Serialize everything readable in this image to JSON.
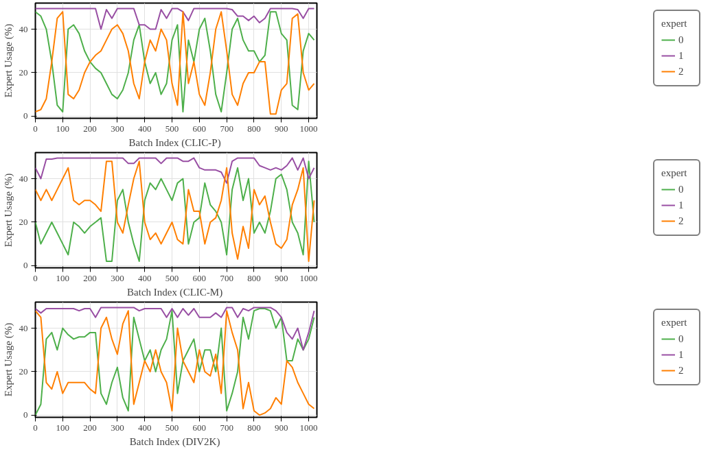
{
  "chart_data": [
    {
      "type": "line",
      "xlabel": "Batch Index  (CLIC-P)",
      "ylabel": "Expert Usage (%)",
      "legend_title": "expert",
      "legend": "right",
      "grid": true,
      "x": [
        0,
        20,
        40,
        60,
        80,
        100,
        120,
        140,
        160,
        180,
        200,
        220,
        240,
        260,
        280,
        300,
        320,
        340,
        360,
        380,
        400,
        420,
        440,
        460,
        480,
        500,
        520,
        540,
        560,
        580,
        600,
        620,
        640,
        660,
        680,
        700,
        720,
        740,
        760,
        780,
        800,
        820,
        840,
        860,
        880,
        900,
        920,
        940,
        960,
        980,
        1000,
        1020
      ],
      "xlim": [
        0,
        1030
      ],
      "ylim": [
        -1,
        52
      ],
      "xticks": [
        0,
        100,
        200,
        300,
        400,
        500,
        600,
        700,
        800,
        900,
        1000
      ],
      "yticks": [
        0,
        20,
        40
      ],
      "series": [
        {
          "name": "0",
          "color": "#4daf4a",
          "values": [
            48,
            46,
            40,
            25,
            5,
            2,
            40,
            42,
            38,
            30,
            25,
            22,
            20,
            15,
            10,
            8,
            12,
            20,
            35,
            42,
            25,
            15,
            20,
            10,
            15,
            35,
            42,
            2,
            35,
            25,
            40,
            45,
            30,
            10,
            2,
            20,
            40,
            45,
            35,
            30,
            30,
            25,
            28,
            48,
            48,
            38,
            35,
            5,
            3,
            30,
            38,
            35
          ]
        },
        {
          "name": "1",
          "color": "#984ea3",
          "values": [
            49.5,
            49.5,
            49.5,
            49.5,
            49.5,
            49.5,
            49.5,
            49.5,
            49.5,
            49.5,
            49.5,
            49.5,
            40,
            49,
            45,
            49.5,
            49.5,
            49.5,
            49.5,
            42,
            42,
            40,
            40,
            49,
            45,
            49.5,
            49.5,
            48,
            44,
            49.5,
            49.5,
            49.5,
            49.5,
            49.5,
            49.5,
            49.5,
            49,
            46,
            46,
            44,
            46,
            43,
            45,
            49.5,
            49.5,
            49.5,
            49.5,
            49.5,
            49,
            45,
            49.5,
            49.5
          ]
        },
        {
          "name": "2",
          "color": "#ff7f00",
          "values": [
            2,
            3,
            8,
            25,
            45,
            48,
            10,
            8,
            12,
            20,
            25,
            28,
            30,
            35,
            40,
            42,
            38,
            30,
            15,
            8,
            25,
            35,
            30,
            40,
            35,
            15,
            5,
            48,
            15,
            25,
            10,
            5,
            20,
            40,
            48,
            30,
            10,
            5,
            15,
            20,
            20,
            25,
            25,
            1,
            1,
            12,
            15,
            45,
            47,
            20,
            12,
            15
          ]
        }
      ]
    },
    {
      "type": "line",
      "xlabel": "Batch Index  (CLIC-M)",
      "ylabel": "Expert Usage (%)",
      "legend_title": "expert",
      "legend": "right",
      "grid": true,
      "x": [
        0,
        20,
        40,
        60,
        80,
        100,
        120,
        140,
        160,
        180,
        200,
        220,
        240,
        260,
        280,
        300,
        320,
        340,
        360,
        380,
        400,
        420,
        440,
        460,
        480,
        500,
        520,
        540,
        560,
        580,
        600,
        620,
        640,
        660,
        680,
        700,
        720,
        740,
        760,
        780,
        800,
        820,
        840,
        860,
        880,
        900,
        920,
        940,
        960,
        980,
        1000,
        1020
      ],
      "xlim": [
        0,
        1030
      ],
      "ylim": [
        -1,
        52
      ],
      "xticks": [
        0,
        100,
        200,
        300,
        400,
        500,
        600,
        700,
        800,
        900,
        1000
      ],
      "yticks": [
        0,
        20,
        40
      ],
      "series": [
        {
          "name": "0",
          "color": "#4daf4a",
          "values": [
            20,
            10,
            15,
            20,
            15,
            10,
            5,
            20,
            18,
            15,
            18,
            20,
            22,
            2,
            2,
            30,
            35,
            20,
            10,
            2,
            30,
            38,
            35,
            40,
            35,
            30,
            38,
            40,
            10,
            20,
            22,
            38,
            28,
            25,
            20,
            5,
            35,
            45,
            30,
            40,
            15,
            20,
            15,
            25,
            40,
            42,
            35,
            20,
            15,
            5,
            48,
            20
          ]
        },
        {
          "name": "1",
          "color": "#984ea3",
          "values": [
            45,
            40,
            49,
            49,
            49.5,
            49.5,
            49.5,
            49.5,
            49.5,
            49.5,
            49.5,
            49.5,
            49.5,
            49.5,
            49.5,
            49.5,
            49.5,
            47,
            47,
            49.5,
            49.5,
            49.5,
            49.5,
            47,
            49.5,
            49.5,
            49.5,
            48,
            48,
            49.5,
            45,
            44,
            44,
            44,
            43,
            38,
            48,
            49.5,
            49.5,
            49.5,
            49.5,
            46,
            45,
            44,
            45,
            44,
            46,
            49.5,
            44,
            49.5,
            40,
            45
          ]
        },
        {
          "name": "2",
          "color": "#ff7f00",
          "values": [
            35,
            30,
            35,
            30,
            35,
            40,
            45,
            30,
            28,
            30,
            30,
            28,
            25,
            48,
            48,
            20,
            15,
            28,
            40,
            48,
            20,
            12,
            15,
            10,
            15,
            20,
            12,
            10,
            35,
            25,
            25,
            10,
            20,
            22,
            30,
            45,
            15,
            3,
            18,
            8,
            35,
            28,
            32,
            20,
            10,
            8,
            12,
            28,
            35,
            45,
            2,
            30
          ]
        }
      ]
    },
    {
      "type": "line",
      "xlabel": "Batch Index  (DIV2K)",
      "ylabel": "Expert Usage (%)",
      "legend_title": "expert",
      "legend": "right",
      "grid": true,
      "x": [
        0,
        20,
        40,
        60,
        80,
        100,
        120,
        140,
        160,
        180,
        200,
        220,
        240,
        260,
        280,
        300,
        320,
        340,
        360,
        380,
        400,
        420,
        440,
        460,
        480,
        500,
        520,
        540,
        560,
        580,
        600,
        620,
        640,
        660,
        680,
        700,
        720,
        740,
        760,
        780,
        800,
        820,
        840,
        860,
        880,
        900,
        920,
        940,
        960,
        980,
        1000,
        1020
      ],
      "xlim": [
        0,
        1030
      ],
      "ylim": [
        -1,
        52
      ],
      "xticks": [
        0,
        100,
        200,
        300,
        400,
        500,
        600,
        700,
        800,
        900,
        1000
      ],
      "yticks": [
        0,
        20,
        40
      ],
      "series": [
        {
          "name": "0",
          "color": "#4daf4a",
          "values": [
            0,
            5,
            35,
            38,
            30,
            40,
            37,
            35,
            36,
            36,
            38,
            38,
            10,
            5,
            15,
            22,
            8,
            2,
            45,
            35,
            25,
            30,
            20,
            30,
            35,
            48,
            10,
            25,
            30,
            35,
            20,
            30,
            30,
            20,
            40,
            2,
            10,
            20,
            45,
            35,
            48,
            49,
            49,
            48,
            40,
            45,
            25,
            25,
            35,
            30,
            35,
            45
          ]
        },
        {
          "name": "1",
          "color": "#984ea3",
          "values": [
            49,
            47,
            49,
            49,
            49,
            49,
            49,
            49,
            48,
            49,
            49,
            45,
            49.5,
            49.5,
            49.5,
            49.5,
            49.5,
            49.5,
            49.5,
            48,
            49,
            49,
            49,
            49,
            45,
            49,
            45,
            49,
            46,
            49,
            45,
            45,
            45,
            47,
            45,
            49.5,
            49.5,
            45,
            49,
            48,
            49.5,
            49.5,
            49.5,
            49.5,
            48,
            45,
            38,
            35,
            40,
            30,
            38,
            48
          ]
        },
        {
          "name": "2",
          "color": "#ff7f00",
          "values": [
            48,
            45,
            15,
            12,
            20,
            10,
            15,
            15,
            15,
            15,
            12,
            10,
            40,
            45,
            35,
            28,
            42,
            48,
            5,
            15,
            25,
            20,
            30,
            20,
            15,
            2,
            40,
            25,
            20,
            15,
            30,
            20,
            18,
            28,
            10,
            48,
            38,
            30,
            3,
            15,
            2,
            0,
            1,
            3,
            8,
            5,
            25,
            22,
            15,
            10,
            5,
            3
          ]
        }
      ]
    }
  ]
}
